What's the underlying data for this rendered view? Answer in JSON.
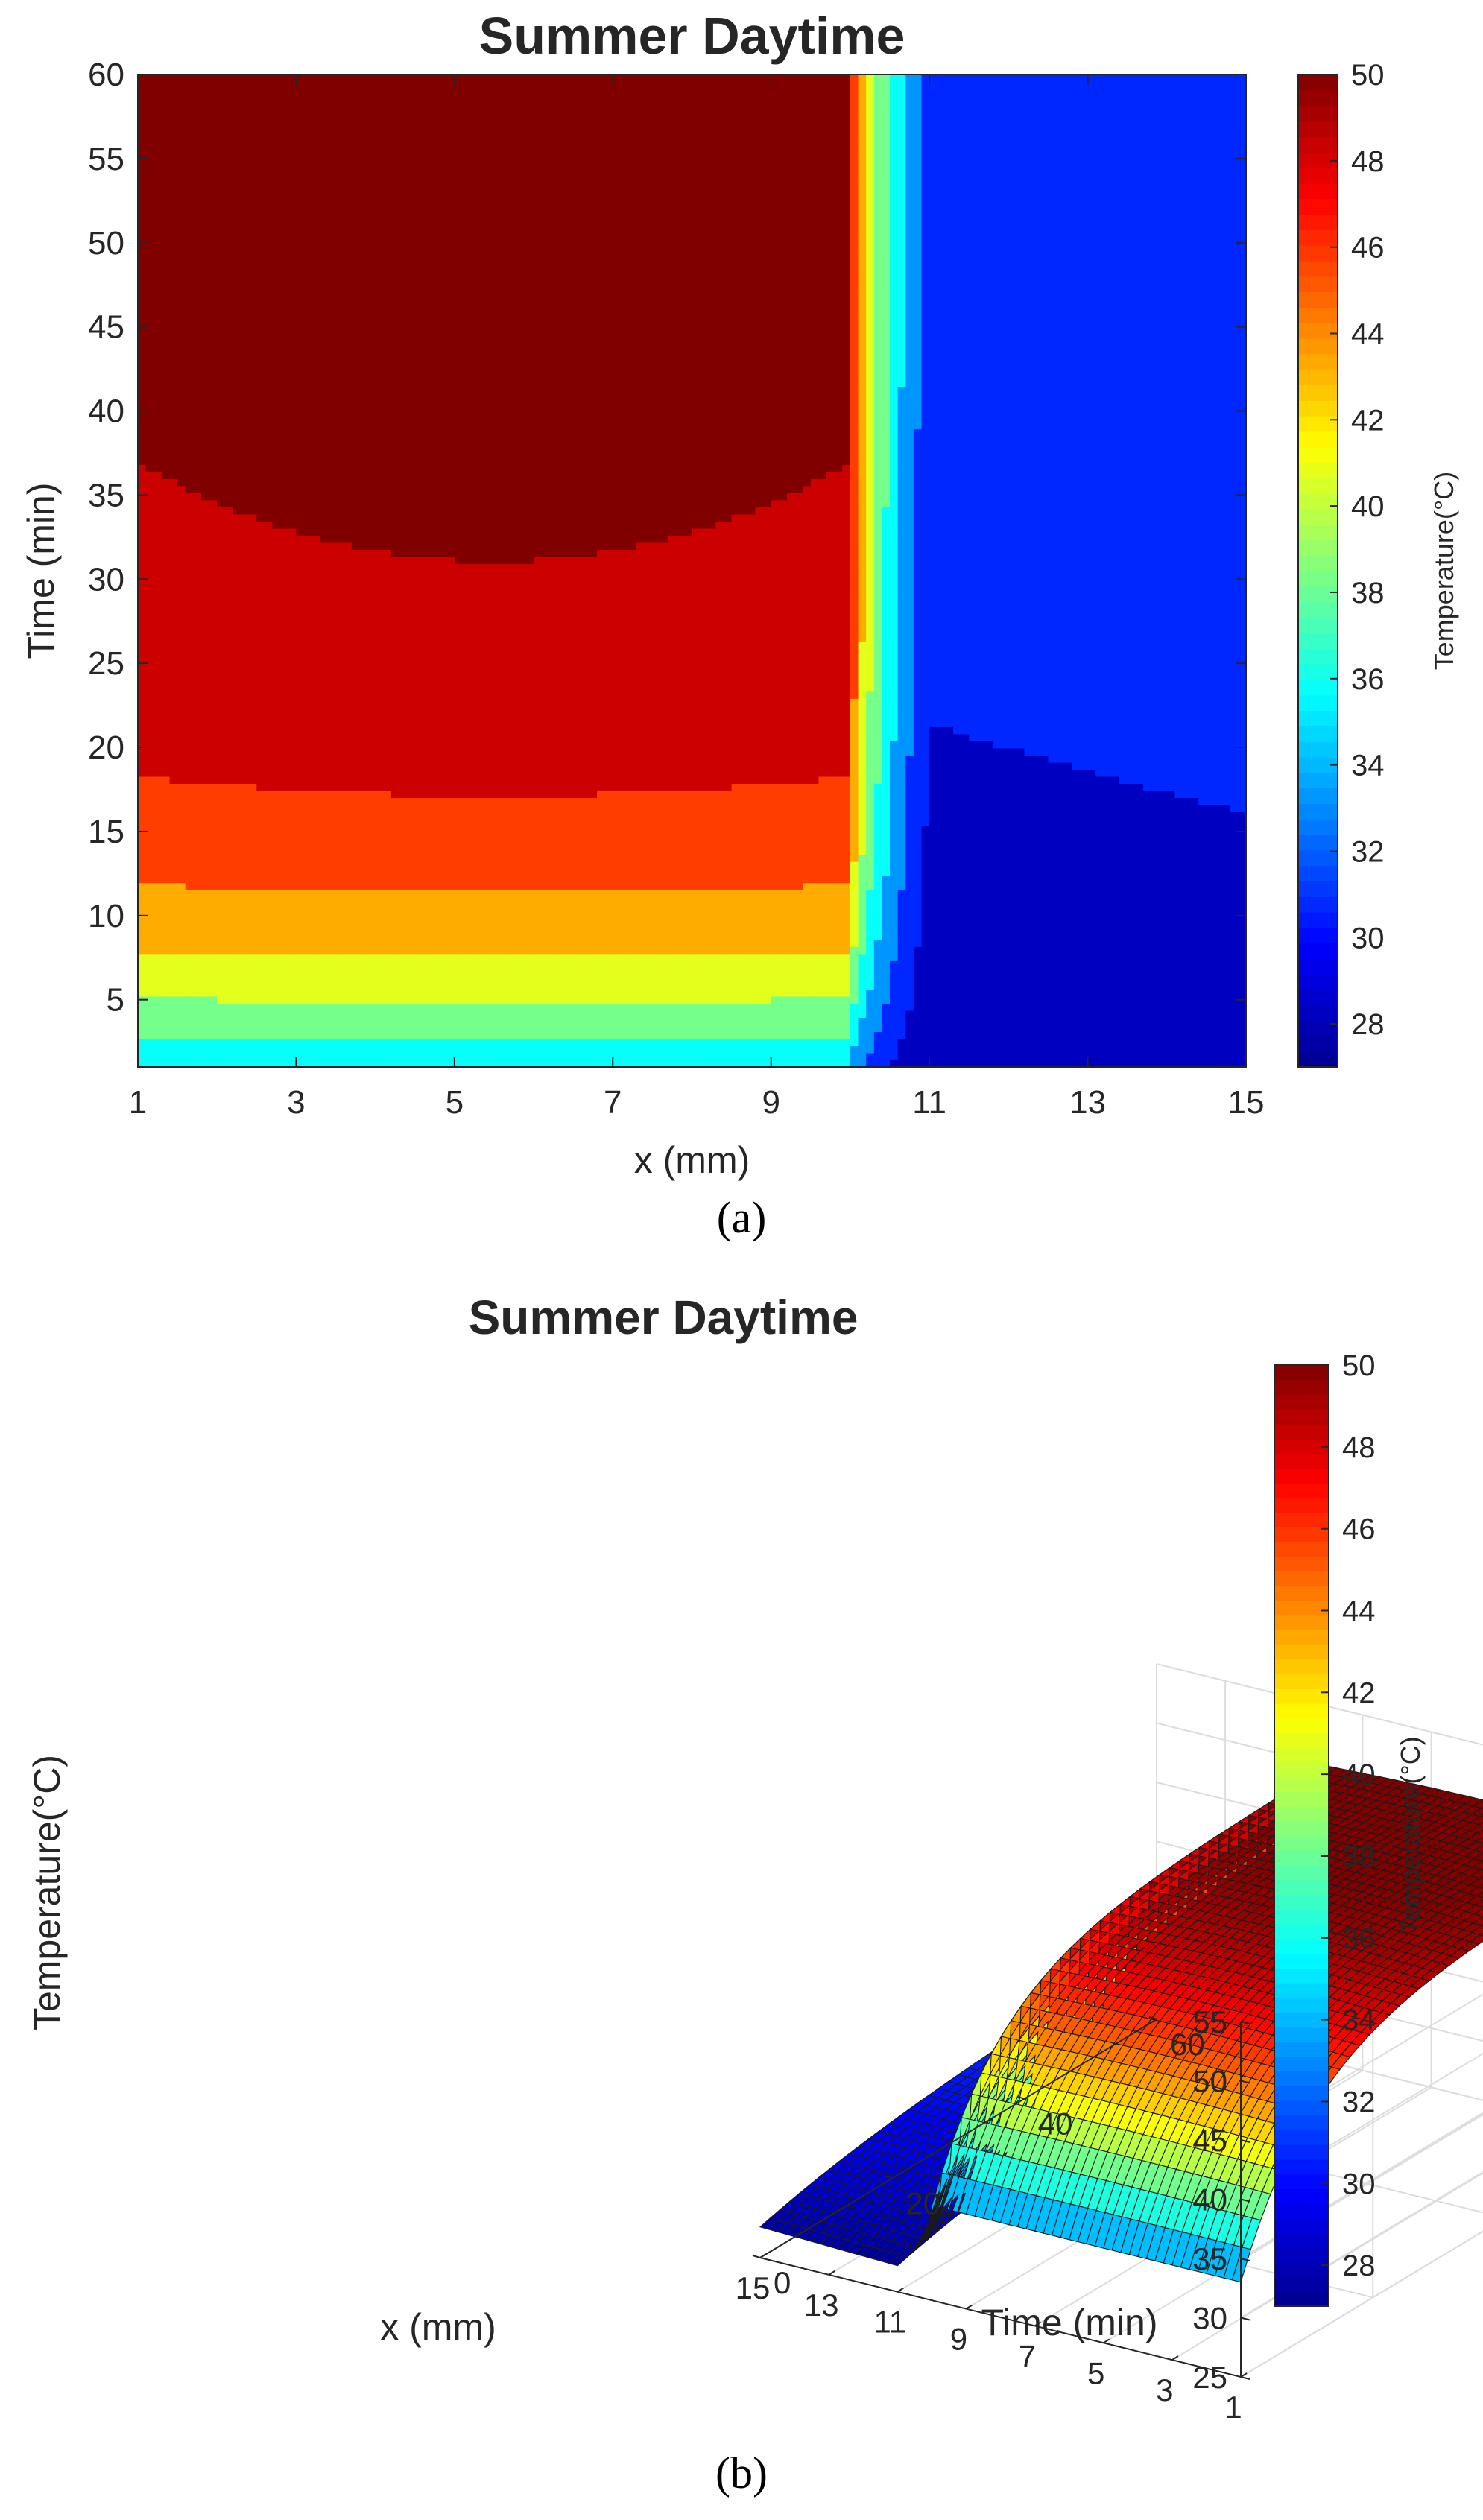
{
  "panel_labels": [
    "(a)",
    "(b)"
  ],
  "colormap": {
    "name": "jet",
    "stops": [
      "#00008f",
      "#0000ff",
      "#0080ff",
      "#00ffff",
      "#80ff80",
      "#ffff00",
      "#ff8000",
      "#ff0000",
      "#800000"
    ]
  },
  "chart_data": [
    {
      "type": "heatmap",
      "subtype": "filled-contour",
      "title": "Summer Daytime",
      "xlabel": "x (mm)",
      "ylabel": "Time (min)",
      "xlim": [
        1,
        15
      ],
      "ylim": [
        1,
        60
      ],
      "xticks": [
        1,
        3,
        5,
        7,
        9,
        11,
        13,
        15
      ],
      "yticks": [
        5,
        10,
        15,
        20,
        25,
        30,
        35,
        40,
        45,
        50,
        55,
        60
      ],
      "colorbar": {
        "label": "Temperature(°C)",
        "limits": [
          27,
          50
        ],
        "ticks": [
          28,
          30,
          32,
          34,
          36,
          38,
          40,
          42,
          44,
          46,
          48,
          50
        ]
      },
      "x": [
        1,
        5,
        10,
        11,
        15
      ],
      "time": [
        1,
        60
      ],
      "notes_model": {
        "layer1_range_mm": [
          1,
          10
        ],
        "layer2_range_mm": [
          11,
          15
        ]
      }
    },
    {
      "type": "surface",
      "title": "Summer Daytime",
      "xlabel": "x (mm)",
      "ylabel": "Time (min)",
      "zlabel": "Temperature(°C)",
      "xlim": [
        1,
        15
      ],
      "ylim": [
        0,
        60
      ],
      "zlim": [
        25,
        55
      ],
      "xticks": [
        1,
        3,
        5,
        7,
        9,
        11,
        13,
        15
      ],
      "yticks": [
        0,
        20,
        40,
        60
      ],
      "zticks": [
        25,
        30,
        35,
        40,
        45,
        50,
        55
      ],
      "grid": true,
      "colorbar": {
        "label": "Temperature(°C)",
        "limits": [
          27,
          50
        ],
        "ticks": [
          28,
          30,
          32,
          34,
          36,
          38,
          40,
          42,
          44,
          46,
          48,
          50
        ]
      }
    }
  ]
}
